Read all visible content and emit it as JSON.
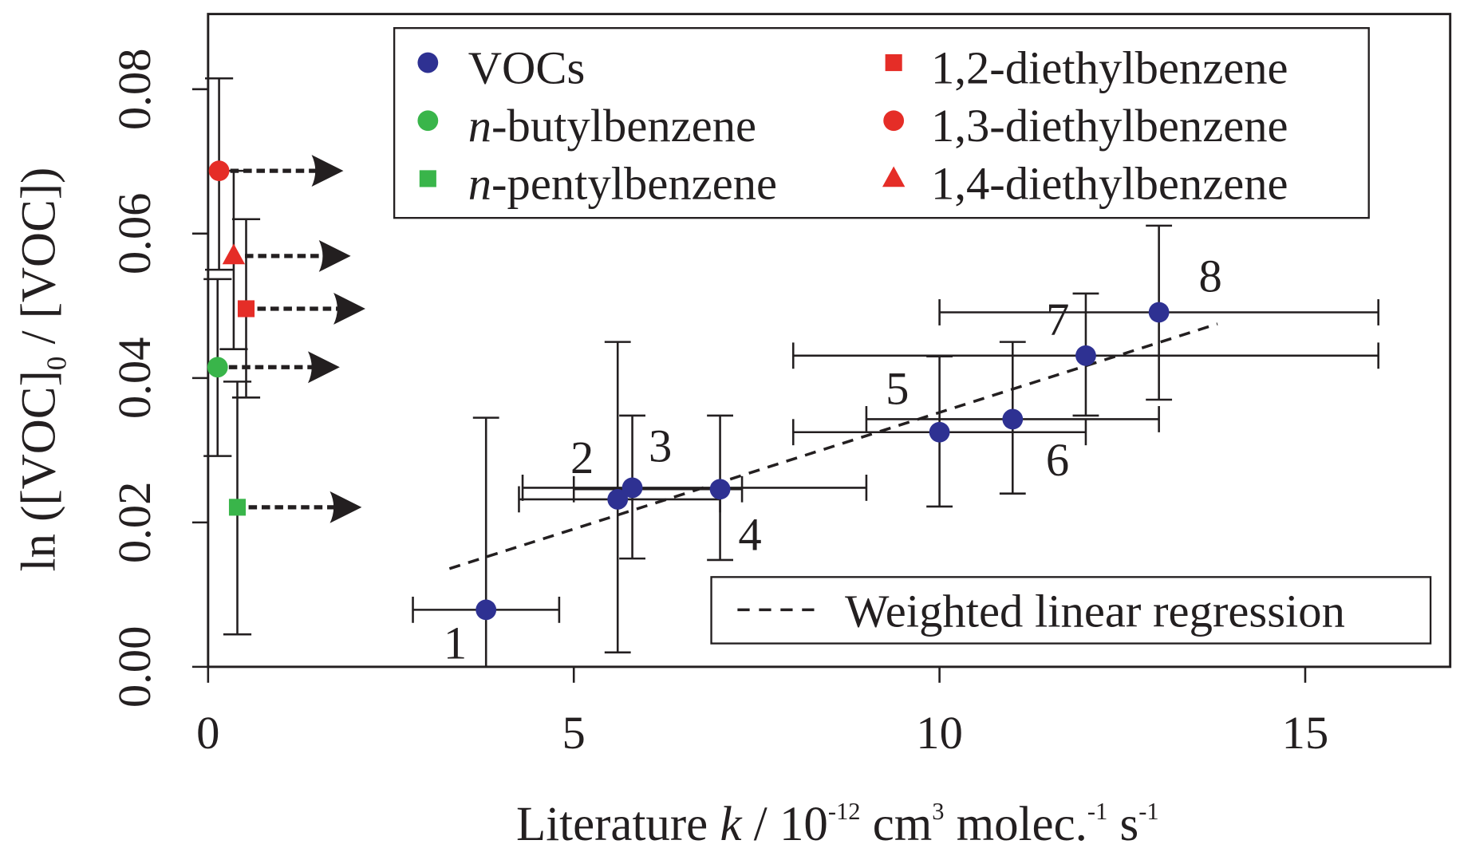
{
  "chart_data": {
    "type": "scatter",
    "xlabel": {
      "pre": "Literature ",
      "k": "k",
      "mid": " / 10",
      "exp1": "-12",
      "cm": " cm",
      "exp2": "3",
      "molec": " molec.",
      "exp3": "-1",
      "s": " s",
      "exp4": "-1"
    },
    "ylabel": {
      "pre": "ln ([VOC]",
      "sub": "0",
      "post": " / [VOC])"
    },
    "xlim": [
      0,
      17
    ],
    "ylim": [
      0,
      0.09
    ],
    "xticks": [
      {
        "v": 0,
        "label": "0"
      },
      {
        "v": 5,
        "label": "5"
      },
      {
        "v": 10,
        "label": "10"
      },
      {
        "v": 15,
        "label": "15"
      }
    ],
    "yticks": [
      {
        "v": 0,
        "label": "0.00"
      },
      {
        "v": 0.02,
        "label": "0.02"
      },
      {
        "v": 0.04,
        "label": "0.04"
      },
      {
        "v": 0.06,
        "label": "0.06"
      },
      {
        "v": 0.08,
        "label": "0.08"
      }
    ],
    "grid": false,
    "colors": {
      "voc": "#2e3192",
      "green": "#39b54a",
      "red": "#e52d27",
      "axis": "#231f20"
    },
    "vocs": [
      {
        "label": "1",
        "x": 3.8,
        "y": 0.0079,
        "xerr": [
          2.8,
          4.8
        ],
        "yerr": [
          0.0,
          0.0345
        ]
      },
      {
        "label": "2",
        "x": 5.6,
        "y": 0.0232,
        "xerr": [
          4.25,
          7.0
        ],
        "yerr": [
          0.002,
          0.045
        ]
      },
      {
        "label": "3",
        "x": 5.8,
        "y": 0.0248,
        "xerr": [
          4.3,
          9.0
        ],
        "yerr": [
          0.015,
          0.0348
        ]
      },
      {
        "label": "4",
        "x": 7.0,
        "y": 0.0246,
        "xerr": [
          5.0,
          7.3
        ],
        "yerr": [
          0.0148,
          0.0348
        ]
      },
      {
        "label": "5",
        "x": 10.0,
        "y": 0.0325,
        "xerr": [
          8.0,
          12.0
        ],
        "yerr": [
          0.0222,
          0.043
        ]
      },
      {
        "label": "6",
        "x": 11.0,
        "y": 0.0343,
        "xerr": [
          9.0,
          13.0
        ],
        "yerr": [
          0.024,
          0.045
        ]
      },
      {
        "label": "7",
        "x": 12.0,
        "y": 0.0431,
        "xerr": [
          8.0,
          16.0
        ],
        "yerr": [
          0.0348,
          0.0517
        ]
      },
      {
        "label": "8",
        "x": 13.0,
        "y": 0.0491,
        "xerr": [
          10.0,
          16.0
        ],
        "yerr": [
          0.037,
          0.0611
        ]
      }
    ],
    "species": [
      {
        "name": "1,3-diethylbenzene",
        "marker": "circle",
        "color": "#e52d27",
        "x": 0.15,
        "y": 0.0687,
        "yerr": [
          0.055,
          0.0815
        ],
        "arrow_to": 1.85
      },
      {
        "name": "1,4-diethylbenzene",
        "marker": "triangle",
        "color": "#e52d27",
        "x": 0.35,
        "y": 0.0569,
        "yerr": [
          0.044,
          0.0687
        ],
        "arrow_to": 1.95
      },
      {
        "name": "1,2-diethylbenzene",
        "marker": "square",
        "color": "#e52d27",
        "x": 0.52,
        "y": 0.0496,
        "yerr": [
          0.0373,
          0.062
        ],
        "arrow_to": 2.15
      },
      {
        "name": "n-butylbenzene",
        "marker": "circle",
        "color": "#39b54a",
        "x": 0.13,
        "y": 0.0415,
        "yerr": [
          0.0292,
          0.0537
        ],
        "arrow_to": 1.8
      },
      {
        "name": "n-pentylbenzene",
        "marker": "square",
        "color": "#39b54a",
        "x": 0.4,
        "y": 0.0221,
        "yerr": [
          0.0045,
          0.0395
        ],
        "arrow_to": 2.1
      }
    ],
    "regression": {
      "name": "Weighted linear regression",
      "x": [
        3.3,
        13.8
      ],
      "y": [
        0.0136,
        0.0475
      ]
    },
    "legend": {
      "placement": "top",
      "entries": [
        {
          "italic": "",
          "text": "VOCs",
          "marker": "circle",
          "color": "#2e3192"
        },
        {
          "italic": "n",
          "text": "-butylbenzene",
          "marker": "circle",
          "color": "#39b54a"
        },
        {
          "italic": "n",
          "text": "-pentylbenzene",
          "marker": "square",
          "color": "#39b54a"
        },
        {
          "italic": "",
          "text": "1,2-diethylbenzene",
          "marker": "square",
          "color": "#e52d27"
        },
        {
          "italic": "",
          "text": "1,3-diethylbenzene",
          "marker": "circle",
          "color": "#e52d27"
        },
        {
          "italic": "",
          "text": "1,4-diethylbenzene",
          "marker": "triangle",
          "color": "#e52d27"
        }
      ]
    }
  }
}
